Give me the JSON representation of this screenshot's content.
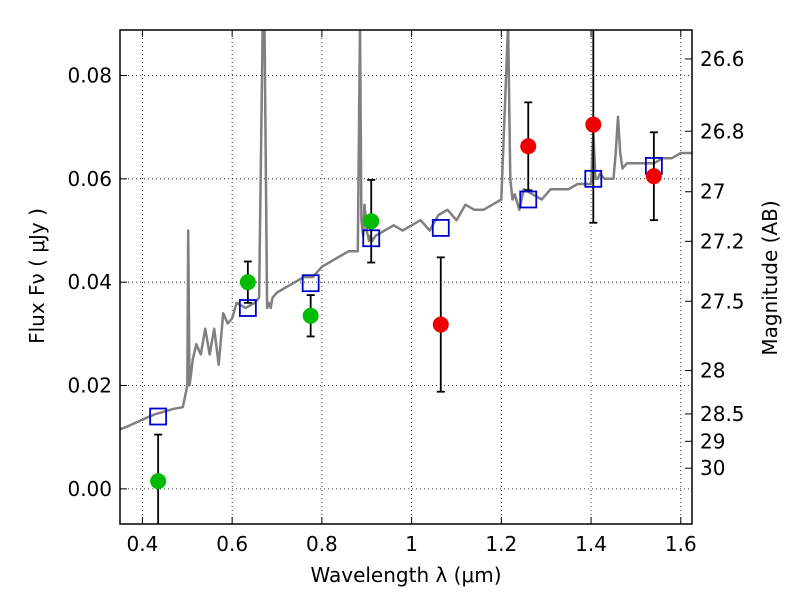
{
  "chart_data": {
    "type": "scatter",
    "xlabel": "Wavelength  λ (μm)",
    "ylabel": "Flux  Fν  ( μJy )",
    "ylabel_right": "Magnitude (AB)",
    "xlim": [
      0.35,
      1.625
    ],
    "ylim": [
      -0.0068,
      0.0888
    ],
    "x_ticks": [
      0.4,
      0.6,
      0.8,
      1.0,
      1.2,
      1.4,
      1.6
    ],
    "x_tick_labels": [
      "0.4",
      "0.6",
      "0.8",
      "1",
      "1.2",
      "1.4",
      "1.6"
    ],
    "y_ticks": [
      0.0,
      0.02,
      0.04,
      0.06,
      0.08
    ],
    "y_tick_labels": [
      "0.00",
      "0.02",
      "0.04",
      "0.06",
      "0.08"
    ],
    "right_ticks": [
      {
        "label": "26.6",
        "flux": 0.0832
      },
      {
        "label": "26.8",
        "flux": 0.0692
      },
      {
        "label": "27",
        "flux": 0.0575
      },
      {
        "label": "27.2",
        "flux": 0.0479
      },
      {
        "label": "27.5",
        "flux": 0.0363
      },
      {
        "label": "28",
        "flux": 0.0229
      },
      {
        "label": "28.5",
        "flux": 0.0145
      },
      {
        "label": "29",
        "flux": 0.0092
      },
      {
        "label": "30",
        "flux": 0.004
      }
    ],
    "grid": true,
    "series": [
      {
        "style": "line",
        "color": "#808080",
        "x": [
          0.35,
          0.37,
          0.39,
          0.41,
          0.43,
          0.45,
          0.47,
          0.49,
          0.5,
          0.502,
          0.505,
          0.508,
          0.512,
          0.52,
          0.53,
          0.54,
          0.55,
          0.56,
          0.57,
          0.58,
          0.59,
          0.6,
          0.61,
          0.63,
          0.65,
          0.66,
          0.668,
          0.672,
          0.678,
          0.682,
          0.686,
          0.69,
          0.7,
          0.72,
          0.74,
          0.76,
          0.78,
          0.8,
          0.82,
          0.84,
          0.86,
          0.88,
          0.885,
          0.888,
          0.892,
          0.895,
          0.9,
          0.905,
          0.908,
          0.912,
          0.92,
          0.94,
          0.96,
          0.98,
          1.0,
          1.02,
          1.04,
          1.06,
          1.08,
          1.1,
          1.12,
          1.14,
          1.16,
          1.18,
          1.2,
          1.215,
          1.22,
          1.225,
          1.23,
          1.24,
          1.25,
          1.27,
          1.29,
          1.31,
          1.33,
          1.35,
          1.37,
          1.39,
          1.4,
          1.405,
          1.41,
          1.415,
          1.42,
          1.43,
          1.44,
          1.45,
          1.455,
          1.46,
          1.465,
          1.47,
          1.48,
          1.5,
          1.52,
          1.54,
          1.56,
          1.58,
          1.6,
          1.625
        ],
        "values": [
          0.0115,
          0.0122,
          0.013,
          0.0138,
          0.0145,
          0.015,
          0.0155,
          0.0158,
          0.02,
          0.05,
          0.02,
          0.022,
          0.025,
          0.028,
          0.026,
          0.031,
          0.026,
          0.031,
          0.024,
          0.034,
          0.032,
          0.033,
          0.036,
          0.035,
          0.036,
          0.037,
          0.09,
          0.09,
          0.035,
          0.036,
          0.035,
          0.037,
          0.038,
          0.039,
          0.04,
          0.041,
          0.041,
          0.043,
          0.044,
          0.045,
          0.046,
          0.046,
          0.09,
          0.052,
          0.049,
          0.055,
          0.05,
          0.048,
          0.049,
          0.048,
          0.049,
          0.05,
          0.051,
          0.05,
          0.051,
          0.052,
          0.05,
          0.053,
          0.054,
          0.052,
          0.055,
          0.054,
          0.054,
          0.055,
          0.056,
          0.09,
          0.06,
          0.056,
          0.057,
          0.054,
          0.058,
          0.057,
          0.056,
          0.058,
          0.058,
          0.058,
          0.059,
          0.059,
          0.059,
          0.069,
          0.06,
          0.06,
          0.061,
          0.06,
          0.06,
          0.06,
          0.065,
          0.072,
          0.065,
          0.062,
          0.063,
          0.063,
          0.063,
          0.063,
          0.064,
          0.064,
          0.065,
          0.065
        ]
      },
      {
        "style": "open-square",
        "color": "#0000cc",
        "x": [
          0.435,
          0.635,
          0.775,
          0.91,
          1.065,
          1.26,
          1.405,
          1.54
        ],
        "values": [
          0.014,
          0.035,
          0.0398,
          0.0485,
          0.0505,
          0.056,
          0.06,
          0.0625
        ]
      },
      {
        "style": "dot",
        "color": "#00bb00",
        "x": [
          0.435,
          0.635,
          0.775,
          0.91
        ],
        "values": [
          0.0015,
          0.04,
          0.0335,
          0.0518
        ],
        "err": [
          [
            0.009,
            0.009
          ],
          [
            0.004,
            0.004
          ],
          [
            0.004,
            0.004
          ],
          [
            0.008,
            0.008
          ]
        ]
      },
      {
        "style": "dot",
        "color": "#ee0000",
        "x": [
          1.065,
          1.26,
          1.405,
          1.54
        ],
        "values": [
          0.0318,
          0.0663,
          0.0705,
          0.0605
        ],
        "err": [
          [
            0.013,
            0.013
          ],
          [
            0.0085,
            0.0085
          ],
          [
            0.019,
            0.019
          ],
          [
            0.0085,
            0.0085
          ]
        ]
      }
    ]
  }
}
